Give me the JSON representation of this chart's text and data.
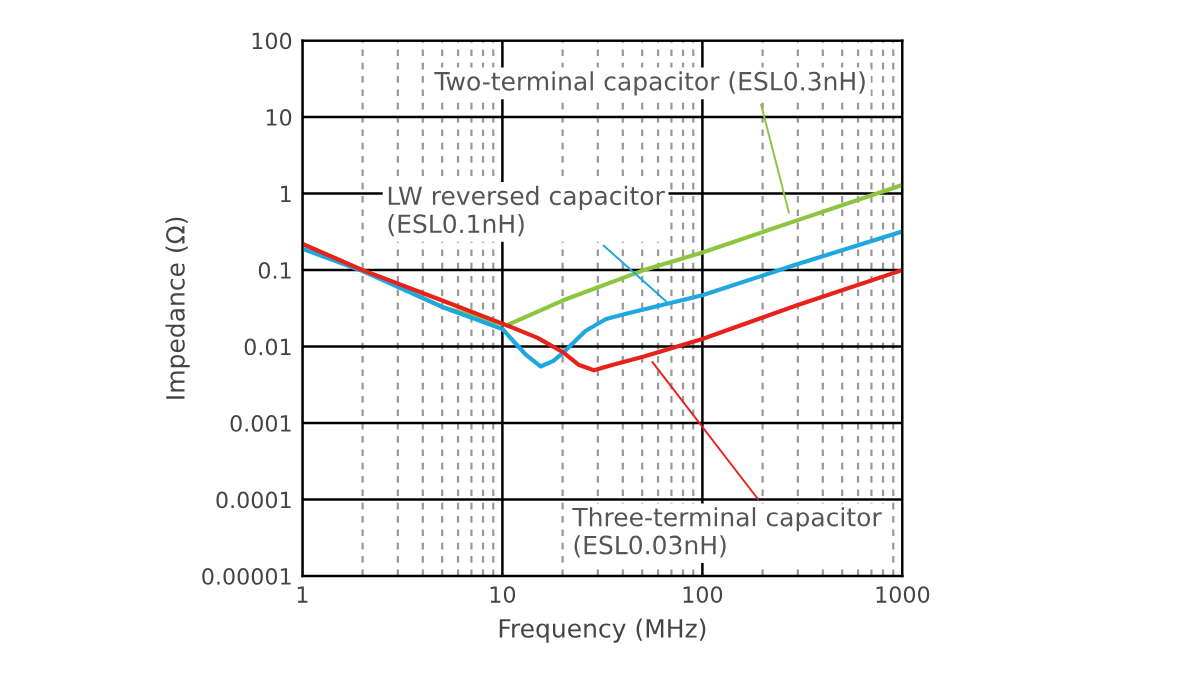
{
  "chart_data": {
    "type": "line",
    "xlabel": "Frequency (MHz)",
    "ylabel": "Impedance (Ω)",
    "log": "xy",
    "grid": true,
    "marker": "none",
    "line_style": "solid",
    "xlim": [
      1,
      1000
    ],
    "ylim": [
      1e-05,
      100
    ],
    "xticks": [
      1,
      10,
      100,
      1000
    ],
    "yticks": [
      {
        "value": 1e-05,
        "label": "0.00001"
      },
      {
        "value": 0.0001,
        "label": "0.0001"
      },
      {
        "value": 0.001,
        "label": "0.001"
      },
      {
        "value": 0.01,
        "label": "0.01"
      },
      {
        "value": 0.1,
        "label": "0.1"
      },
      {
        "value": 1,
        "label": "1"
      },
      {
        "value": 10,
        "label": "10"
      },
      {
        "value": 100,
        "label": "100"
      }
    ],
    "series": [
      {
        "color": "#8cc63f",
        "x": [
          1,
          2,
          5,
          10.5,
          20,
          51,
          100,
          300,
          1000
        ],
        "values": [
          0.22,
          0.1,
          0.033,
          0.019,
          0.04,
          0.1,
          0.17,
          0.45,
          1.3
        ]
      },
      {
        "color": "#1ea7e1",
        "x": [
          1,
          2,
          5,
          10,
          13,
          15.5,
          18,
          20.3,
          26,
          33,
          42,
          100,
          300,
          1000
        ],
        "values": [
          0.19,
          0.097,
          0.033,
          0.017,
          0.008,
          0.0055,
          0.0065,
          0.0085,
          0.016,
          0.023,
          0.027,
          0.047,
          0.12,
          0.32
        ]
      },
      {
        "color": "#e8221a",
        "x": [
          1,
          2,
          5,
          10,
          15,
          20,
          24,
          28.7,
          35,
          51,
          100,
          300,
          1000
        ],
        "values": [
          0.22,
          0.1,
          0.04,
          0.02,
          0.013,
          0.0085,
          0.0058,
          0.0049,
          0.0057,
          0.0074,
          0.0126,
          0.035,
          0.1
        ]
      }
    ],
    "annotations": [
      {
        "text": "Two-terminal capacitor (ESL0.3nH)",
        "x": 275,
        "y": 0.48
      },
      {
        "text": "LW reversed capacitor\n(ESL0.1nH)",
        "x": 69,
        "y": 0.035
      },
      {
        "text": "Three-terminal capacitor\n(ESL0.03nH)",
        "x": 54,
        "y": 0.0072
      }
    ]
  }
}
